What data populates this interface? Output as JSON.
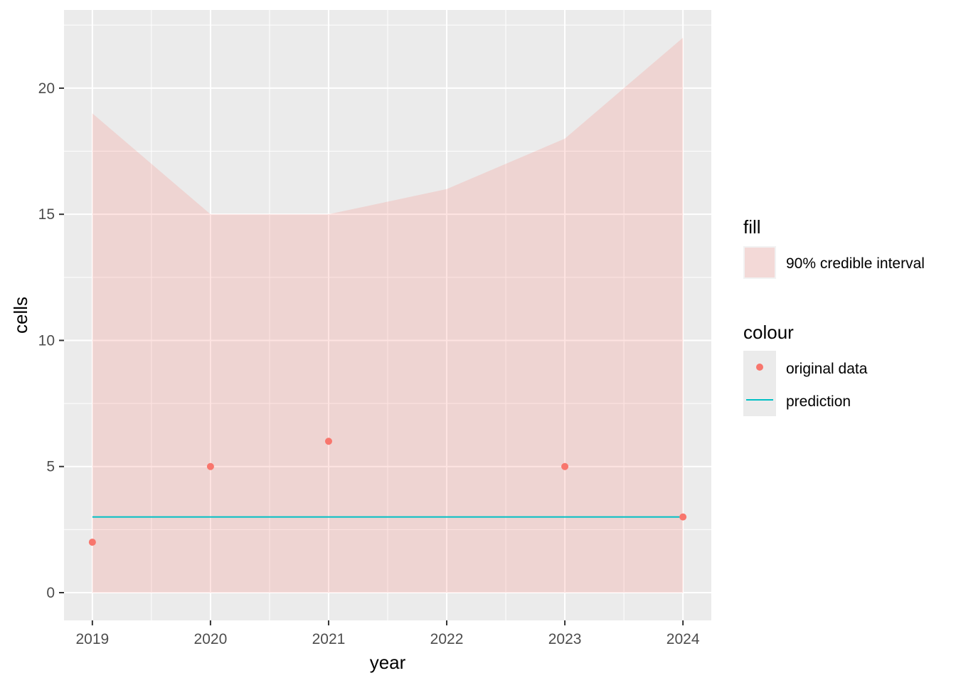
{
  "chart_data": {
    "type": "line",
    "xlabel": "year",
    "ylabel": "cells",
    "x": [
      2019,
      2020,
      2021,
      2022,
      2023,
      2024
    ],
    "xlim": [
      2018.76,
      2024.24
    ],
    "ylim": [
      -1.1,
      23.1
    ],
    "y_ticks": [
      0,
      5,
      10,
      15,
      20
    ],
    "grid": true,
    "series": [
      {
        "name": "original data",
        "kind": "points",
        "x": [
          2019,
          2020,
          2021,
          2023,
          2024
        ],
        "y": [
          2,
          5,
          6,
          5,
          3
        ],
        "color": "#F8766D"
      },
      {
        "name": "prediction",
        "kind": "line",
        "x": [
          2019,
          2020,
          2021,
          2022,
          2023,
          2024
        ],
        "y": [
          3,
          3,
          3,
          3,
          3,
          3
        ],
        "color": "#00BFC4"
      }
    ],
    "ribbon": {
      "name": "90% credible interval",
      "x": [
        2019,
        2020,
        2021,
        2022,
        2023,
        2024
      ],
      "lower": [
        0,
        0,
        0,
        0,
        0,
        0
      ],
      "upper": [
        19,
        15,
        15,
        16,
        18,
        22
      ],
      "color": "#F8766D"
    },
    "legend": {
      "placement": "right",
      "fill_title": "fill",
      "fill_label": "90% credible interval",
      "colour_title": "colour",
      "colour_labels": [
        "original data",
        "prediction"
      ]
    },
    "colors": {
      "panel": "#EBEBEB",
      "grid": "#FFFFFF",
      "ribbon_fill": "#F8766D"
    }
  }
}
